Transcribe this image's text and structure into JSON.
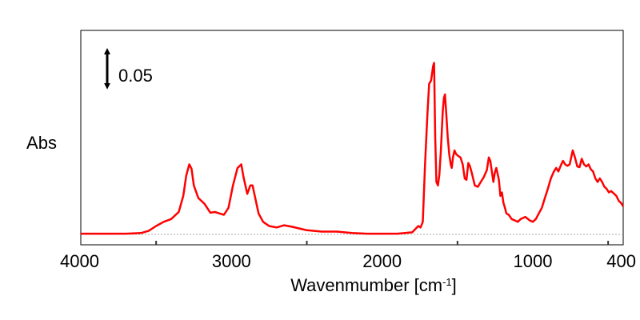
{
  "chart_data": {
    "type": "line",
    "xlabel": "Wavenmumber [cm",
    "xlabel_superscript": "-1",
    "xlabel_suffix": "]",
    "ylabel": "Abs",
    "xlim": [
      4000,
      400
    ],
    "x_reversed": true,
    "ylim": [
      0,
      0.28
    ],
    "grid": false,
    "x_ticks": [
      4000,
      3000,
      2000,
      1000,
      400
    ],
    "x_tick_labels": [
      "4000",
      "3000",
      "2000",
      "1000",
      "400"
    ],
    "minor_ticks": [
      3500,
      2500,
      1500,
      500
    ],
    "scale_bar": {
      "label": "0.05",
      "value": 0.05
    },
    "colors": {
      "series": "#ff0000",
      "baseline": "#aaaaaa"
    },
    "series": [
      {
        "color": "#ff0000",
        "points": [
          [
            4000,
            0.001
          ],
          [
            3900,
            0.001
          ],
          [
            3800,
            0.001
          ],
          [
            3700,
            0.001
          ],
          [
            3600,
            0.002
          ],
          [
            3550,
            0.005
          ],
          [
            3500,
            0.012
          ],
          [
            3450,
            0.018
          ],
          [
            3400,
            0.022
          ],
          [
            3350,
            0.032
          ],
          [
            3320,
            0.055
          ],
          [
            3300,
            0.084
          ],
          [
            3280,
            0.1
          ],
          [
            3265,
            0.094
          ],
          [
            3250,
            0.07
          ],
          [
            3220,
            0.052
          ],
          [
            3180,
            0.044
          ],
          [
            3140,
            0.031
          ],
          [
            3110,
            0.032
          ],
          [
            3080,
            0.03
          ],
          [
            3050,
            0.028
          ],
          [
            3020,
            0.038
          ],
          [
            2990,
            0.07
          ],
          [
            2960,
            0.095
          ],
          [
            2935,
            0.1
          ],
          [
            2920,
            0.082
          ],
          [
            2895,
            0.058
          ],
          [
            2875,
            0.07
          ],
          [
            2860,
            0.07
          ],
          [
            2845,
            0.055
          ],
          [
            2820,
            0.03
          ],
          [
            2790,
            0.018
          ],
          [
            2750,
            0.012
          ],
          [
            2700,
            0.01
          ],
          [
            2650,
            0.013
          ],
          [
            2600,
            0.011
          ],
          [
            2500,
            0.006
          ],
          [
            2400,
            0.004
          ],
          [
            2300,
            0.004
          ],
          [
            2200,
            0.002
          ],
          [
            2100,
            0.001
          ],
          [
            2000,
            0.001
          ],
          [
            1900,
            0.001
          ],
          [
            1800,
            0.003
          ],
          [
            1760,
            0.012
          ],
          [
            1745,
            0.01
          ],
          [
            1730,
            0.018
          ],
          [
            1715,
            0.1
          ],
          [
            1700,
            0.17
          ],
          [
            1688,
            0.215
          ],
          [
            1675,
            0.22
          ],
          [
            1662,
            0.24
          ],
          [
            1655,
            0.245
          ],
          [
            1648,
            0.14
          ],
          [
            1640,
            0.075
          ],
          [
            1630,
            0.07
          ],
          [
            1620,
            0.085
          ],
          [
            1610,
            0.12
          ],
          [
            1598,
            0.175
          ],
          [
            1590,
            0.195
          ],
          [
            1583,
            0.2
          ],
          [
            1575,
            0.175
          ],
          [
            1565,
            0.14
          ],
          [
            1555,
            0.115
          ],
          [
            1545,
            0.1
          ],
          [
            1538,
            0.095
          ],
          [
            1530,
            0.11
          ],
          [
            1520,
            0.12
          ],
          [
            1510,
            0.115
          ],
          [
            1495,
            0.112
          ],
          [
            1480,
            0.11
          ],
          [
            1465,
            0.1
          ],
          [
            1452,
            0.08
          ],
          [
            1440,
            0.078
          ],
          [
            1428,
            0.102
          ],
          [
            1418,
            0.098
          ],
          [
            1405,
            0.088
          ],
          [
            1385,
            0.07
          ],
          [
            1365,
            0.068
          ],
          [
            1345,
            0.075
          ],
          [
            1325,
            0.082
          ],
          [
            1305,
            0.092
          ],
          [
            1292,
            0.11
          ],
          [
            1282,
            0.105
          ],
          [
            1272,
            0.09
          ],
          [
            1262,
            0.075
          ],
          [
            1252,
            0.088
          ],
          [
            1242,
            0.095
          ],
          [
            1232,
            0.085
          ],
          [
            1225,
            0.078
          ],
          [
            1215,
            0.055
          ],
          [
            1205,
            0.06
          ],
          [
            1195,
            0.045
          ],
          [
            1185,
            0.038
          ],
          [
            1175,
            0.03
          ],
          [
            1160,
            0.028
          ],
          [
            1140,
            0.022
          ],
          [
            1120,
            0.02
          ],
          [
            1100,
            0.018
          ],
          [
            1080,
            0.022
          ],
          [
            1050,
            0.025
          ],
          [
            1020,
            0.02
          ],
          [
            1000,
            0.018
          ],
          [
            980,
            0.022
          ],
          [
            960,
            0.03
          ],
          [
            940,
            0.038
          ],
          [
            920,
            0.052
          ],
          [
            900,
            0.065
          ],
          [
            880,
            0.08
          ],
          [
            860,
            0.09
          ],
          [
            845,
            0.095
          ],
          [
            830,
            0.09
          ],
          [
            815,
            0.098
          ],
          [
            800,
            0.105
          ],
          [
            785,
            0.1
          ],
          [
            770,
            0.098
          ],
          [
            755,
            0.1
          ],
          [
            735,
            0.12
          ],
          [
            720,
            0.11
          ],
          [
            705,
            0.097
          ],
          [
            690,
            0.096
          ],
          [
            675,
            0.108
          ],
          [
            660,
            0.1
          ],
          [
            645,
            0.097
          ],
          [
            630,
            0.1
          ],
          [
            615,
            0.093
          ],
          [
            600,
            0.09
          ],
          [
            585,
            0.08
          ],
          [
            570,
            0.075
          ],
          [
            555,
            0.08
          ],
          [
            540,
            0.075
          ],
          [
            525,
            0.068
          ],
          [
            510,
            0.065
          ],
          [
            495,
            0.06
          ],
          [
            480,
            0.062
          ],
          [
            460,
            0.058
          ],
          [
            445,
            0.055
          ],
          [
            430,
            0.048
          ],
          [
            415,
            0.045
          ],
          [
            400,
            0.04
          ]
        ]
      }
    ]
  }
}
